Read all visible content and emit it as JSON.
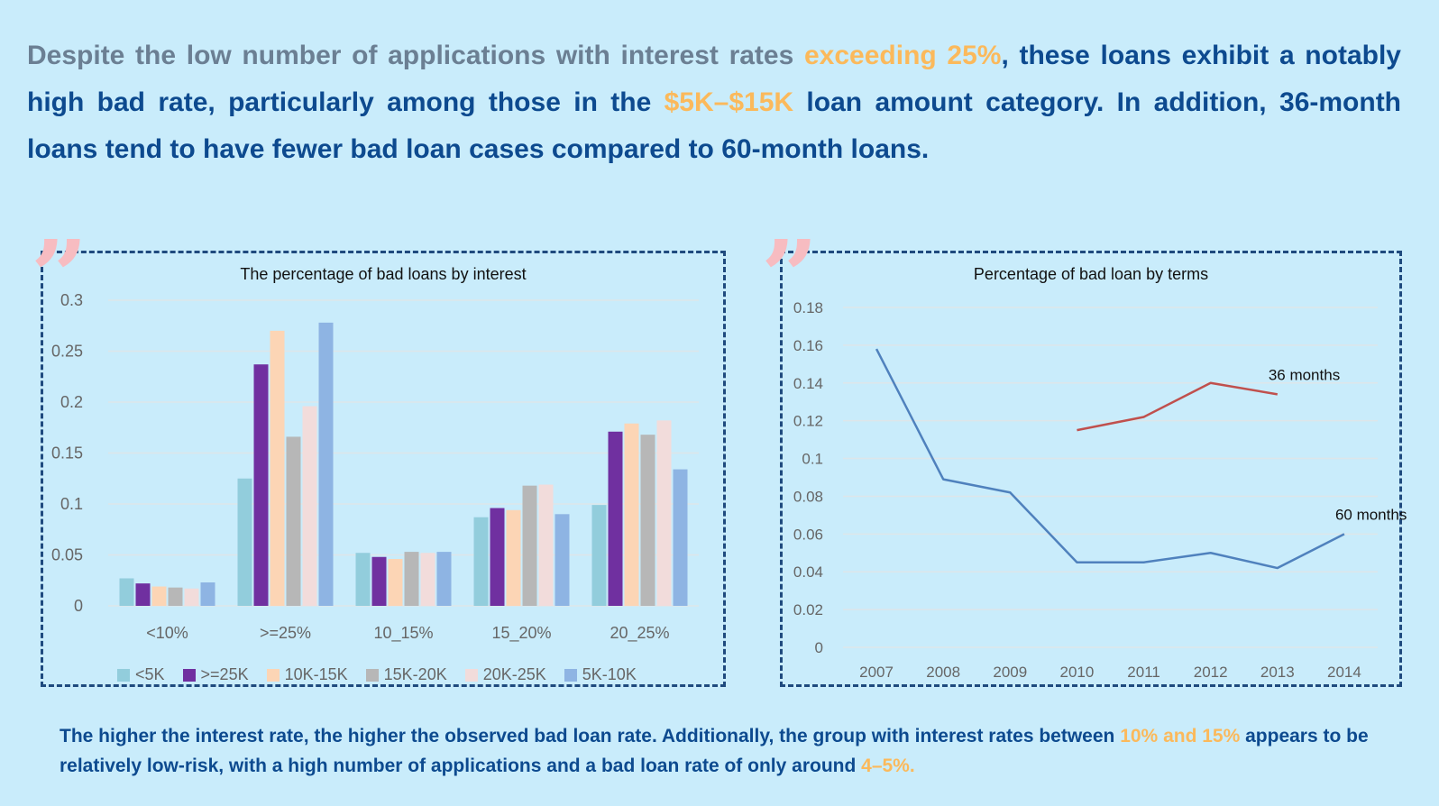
{
  "headline": {
    "part1_muted": "Despite the low number of applications with interest rates ",
    "part2_highlight": "exceeding 25%",
    "part3": ", these loans exhibit a notably high bad rate, particularly among those in the ",
    "part4_highlight": "$5K–$15K",
    "part5": " loan amount category. In addition, 36-month loans tend to have fewer bad loan cases compared to 60-month loans."
  },
  "footer": {
    "part1": "The higher the interest rate, the higher the observed bad loan rate. Additionally, the group with interest rates between ",
    "part2_highlight": "10% and 15%",
    "part3": " appears to be relatively low-risk, with a high number of applications and a bad loan rate of only around ",
    "part4_highlight": "4–5%."
  },
  "colors": {
    "background": "#c9ecfb",
    "headline_text": "#0d4a8f",
    "muted_text": "#6b7f93",
    "highlight": "#fbb95b",
    "panel_border": "#1f4a7e",
    "quote_mark": "#f7bcc1"
  },
  "chart_data": [
    {
      "type": "bar",
      "title": "The percentage of bad loans by interest",
      "xlabel": "",
      "ylabel": "",
      "categories": [
        "<10%",
        ">=25%",
        "10_15%",
        "15_20%",
        "20_25%"
      ],
      "ylim": [
        0,
        0.3
      ],
      "yticks": [
        "0",
        "0.05",
        "0.1",
        "0.15",
        "0.2",
        "0.25",
        "0.3"
      ],
      "grid": true,
      "legend_position": "bottom",
      "series": [
        {
          "name": "<5K",
          "color": "#92cddc",
          "values": [
            0.027,
            0.125,
            0.052,
            0.087,
            0.099
          ]
        },
        {
          "name": ">=25K",
          "color": "#7030a0",
          "values": [
            0.022,
            0.237,
            0.048,
            0.096,
            0.171
          ]
        },
        {
          "name": "10K-15K",
          "color": "#fcd5b5",
          "values": [
            0.019,
            0.27,
            0.046,
            0.094,
            0.179
          ]
        },
        {
          "name": "15K-20K",
          "color": "#b7b7b7",
          "values": [
            0.018,
            0.166,
            0.053,
            0.118,
            0.168
          ]
        },
        {
          "name": "20K-25K",
          "color": "#f2dcdb",
          "values": [
            0.017,
            0.196,
            0.052,
            0.119,
            0.182
          ]
        },
        {
          "name": "5K-10K",
          "color": "#8eb4e3",
          "values": [
            0.023,
            0.278,
            0.053,
            0.09,
            0.134
          ]
        }
      ]
    },
    {
      "type": "line",
      "title": "Percentage of bad loan by terms",
      "xlabel": "",
      "ylabel": "",
      "x": [
        "2007",
        "2008",
        "2009",
        "2010",
        "2011",
        "2012",
        "2013",
        "2014"
      ],
      "ylim": [
        0,
        0.18
      ],
      "yticks": [
        "0",
        "0.02",
        "0.04",
        "0.06",
        "0.08",
        "0.1",
        "0.12",
        "0.14",
        "0.16",
        "0.18"
      ],
      "grid": true,
      "series": [
        {
          "name": "60 months",
          "color": "#4f81bd",
          "values": [
            0.158,
            0.089,
            0.082,
            0.045,
            0.045,
            0.05,
            0.042,
            0.06
          ]
        },
        {
          "name": "36 months",
          "color": "#c0504d",
          "values": [
            null,
            null,
            null,
            0.115,
            0.122,
            0.14,
            0.134,
            null
          ]
        }
      ]
    }
  ]
}
